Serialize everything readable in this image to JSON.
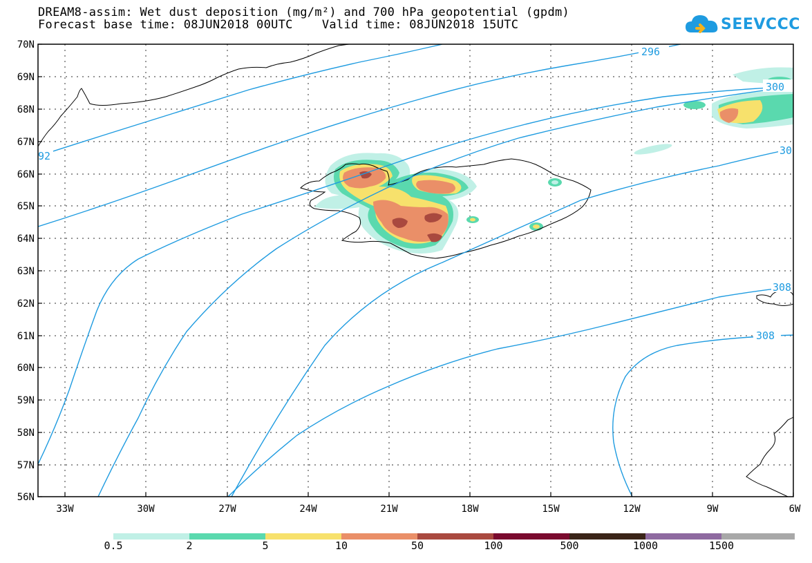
{
  "title": {
    "line1": "DREAM8-assim: Wet dust deposition (mg/m²) and 700 hPa geopotential (gpdm)",
    "line2": "Forecast base time: 08JUN2018 00UTC    Valid time: 08JUN2018 15UTC"
  },
  "logo": {
    "text": "SEEVCCC"
  },
  "map": {
    "lon_range": [
      -34,
      -6
    ],
    "lat_range": [
      56,
      70
    ],
    "lat_labels": [
      "70N",
      "69N",
      "68N",
      "67N",
      "66N",
      "65N",
      "64N",
      "63N",
      "62N",
      "61N",
      "60N",
      "59N",
      "58N",
      "57N",
      "56N"
    ],
    "lon_labels": [
      "33W",
      "30W",
      "27W",
      "24W",
      "21W",
      "18W",
      "15W",
      "12W",
      "9W",
      "6W"
    ],
    "contour_color": "#1e9be0",
    "contour_labels": [
      "296",
      "300",
      "92",
      "30",
      "308",
      "308"
    ]
  },
  "colorbar": {
    "colors": [
      "#c0f0e6",
      "#5ad9ae",
      "#f7e16c",
      "#ea8f68",
      "#a9493f",
      "#7a0a2e",
      "#3a2418",
      "#8e6aa0",
      "#a8a8a8"
    ],
    "labels": [
      "0.5",
      "2",
      "5",
      "10",
      "50",
      "100",
      "500",
      "1000",
      "1500"
    ]
  }
}
